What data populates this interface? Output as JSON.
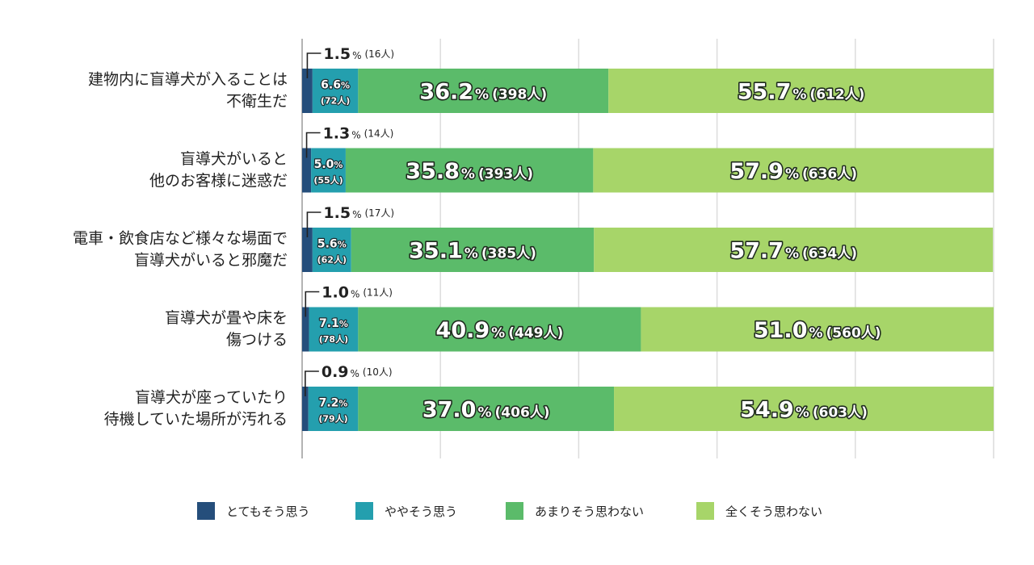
{
  "chart_data": {
    "type": "bar",
    "orientation": "horizontal",
    "stacked": true,
    "xlim": [
      0,
      100
    ],
    "grid": true,
    "legend_position": "bottom",
    "percent_suffix": "%",
    "categories": [
      [
        "建物内に盲導犬が入ることは",
        "不衛生だ"
      ],
      [
        "盲導犬がいると",
        "他のお客様に迷惑だ"
      ],
      [
        "電車・飲食店など様々な場面で",
        "盲導犬がいると邪魔だ"
      ],
      [
        "盲導犬が畳や床を",
        "傷つける"
      ],
      [
        "盲導犬が座っていたり",
        "待機していた場所が汚れる"
      ]
    ],
    "series": [
      {
        "name": "とてもそう思う",
        "color": "#254e7b",
        "values": [
          1.5,
          1.3,
          1.5,
          1.0,
          0.9
        ],
        "value_labels": [
          "1.5",
          "1.3",
          "1.5",
          "1.0",
          "0.9"
        ],
        "counts": [
          "(16人)",
          "(14人)",
          "(17人)",
          "(11人)",
          "(10人)"
        ]
      },
      {
        "name": "ややそう思う",
        "color": "#249fae",
        "values": [
          6.6,
          5.0,
          5.6,
          7.1,
          7.2
        ],
        "value_labels": [
          "6.6",
          "5.0",
          "5.6",
          "7.1",
          "7.2"
        ],
        "counts": [
          "(72人)",
          "(55人)",
          "(62人)",
          "(78人)",
          "(79人)"
        ]
      },
      {
        "name": "あまりそう思わない",
        "color": "#5bbb6a",
        "values": [
          36.2,
          35.8,
          35.1,
          40.9,
          37.0
        ],
        "value_labels": [
          "36.2",
          "35.8",
          "35.1",
          "40.9",
          "37.0"
        ],
        "counts": [
          "(398人)",
          "(393人)",
          "(385人)",
          "(449人)",
          "(406人)"
        ]
      },
      {
        "name": "全くそう思わない",
        "color": "#a7d569",
        "values": [
          55.7,
          57.9,
          57.7,
          51.0,
          54.9
        ],
        "value_labels": [
          "55.7",
          "57.9",
          "57.7",
          "51.0",
          "54.9"
        ],
        "counts": [
          "(612人)",
          "(636人)",
          "(634人)",
          "(560人)",
          "(603人)"
        ]
      }
    ]
  }
}
